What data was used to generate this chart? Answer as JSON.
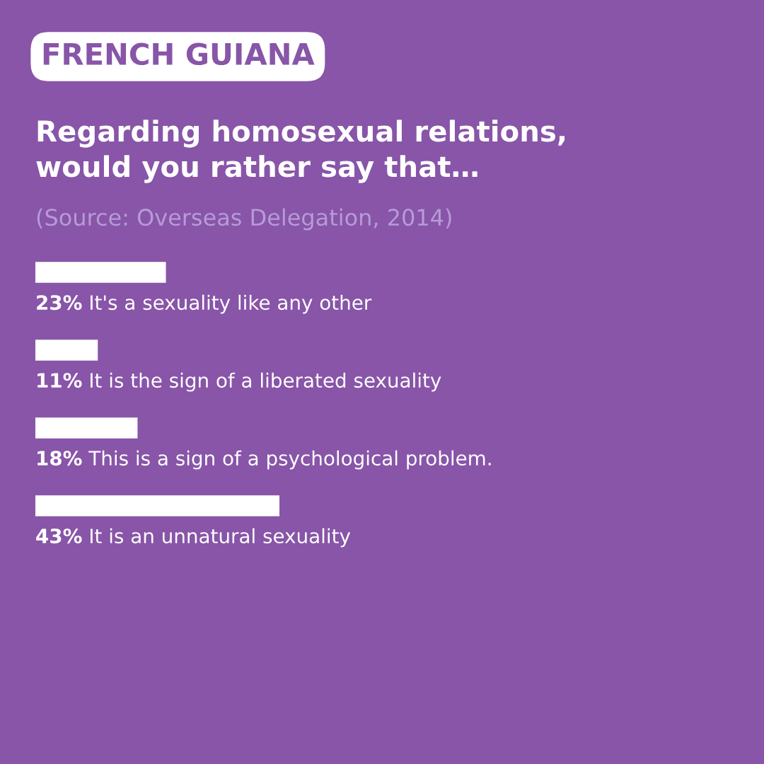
{
  "chart_data": {
    "type": "bar",
    "orientation": "horizontal",
    "subtitle": "FRENCH GUIANA",
    "title": "Regarding homosexual relations,\nwould you rather say that…",
    "annotations": [
      "(Source: Overseas Delegation, 2014)"
    ],
    "categories": [
      "It's a sexuality like any other",
      "It is the sign of a liberated sexuality",
      "This is a sign of a psychological problem.",
      "It is an unnatural sexuality"
    ],
    "values": [
      23,
      11,
      18,
      43
    ],
    "value_labels": [
      "23%",
      "11%",
      "18%",
      "43%"
    ],
    "color": "#ffffff",
    "legend": false
  }
}
